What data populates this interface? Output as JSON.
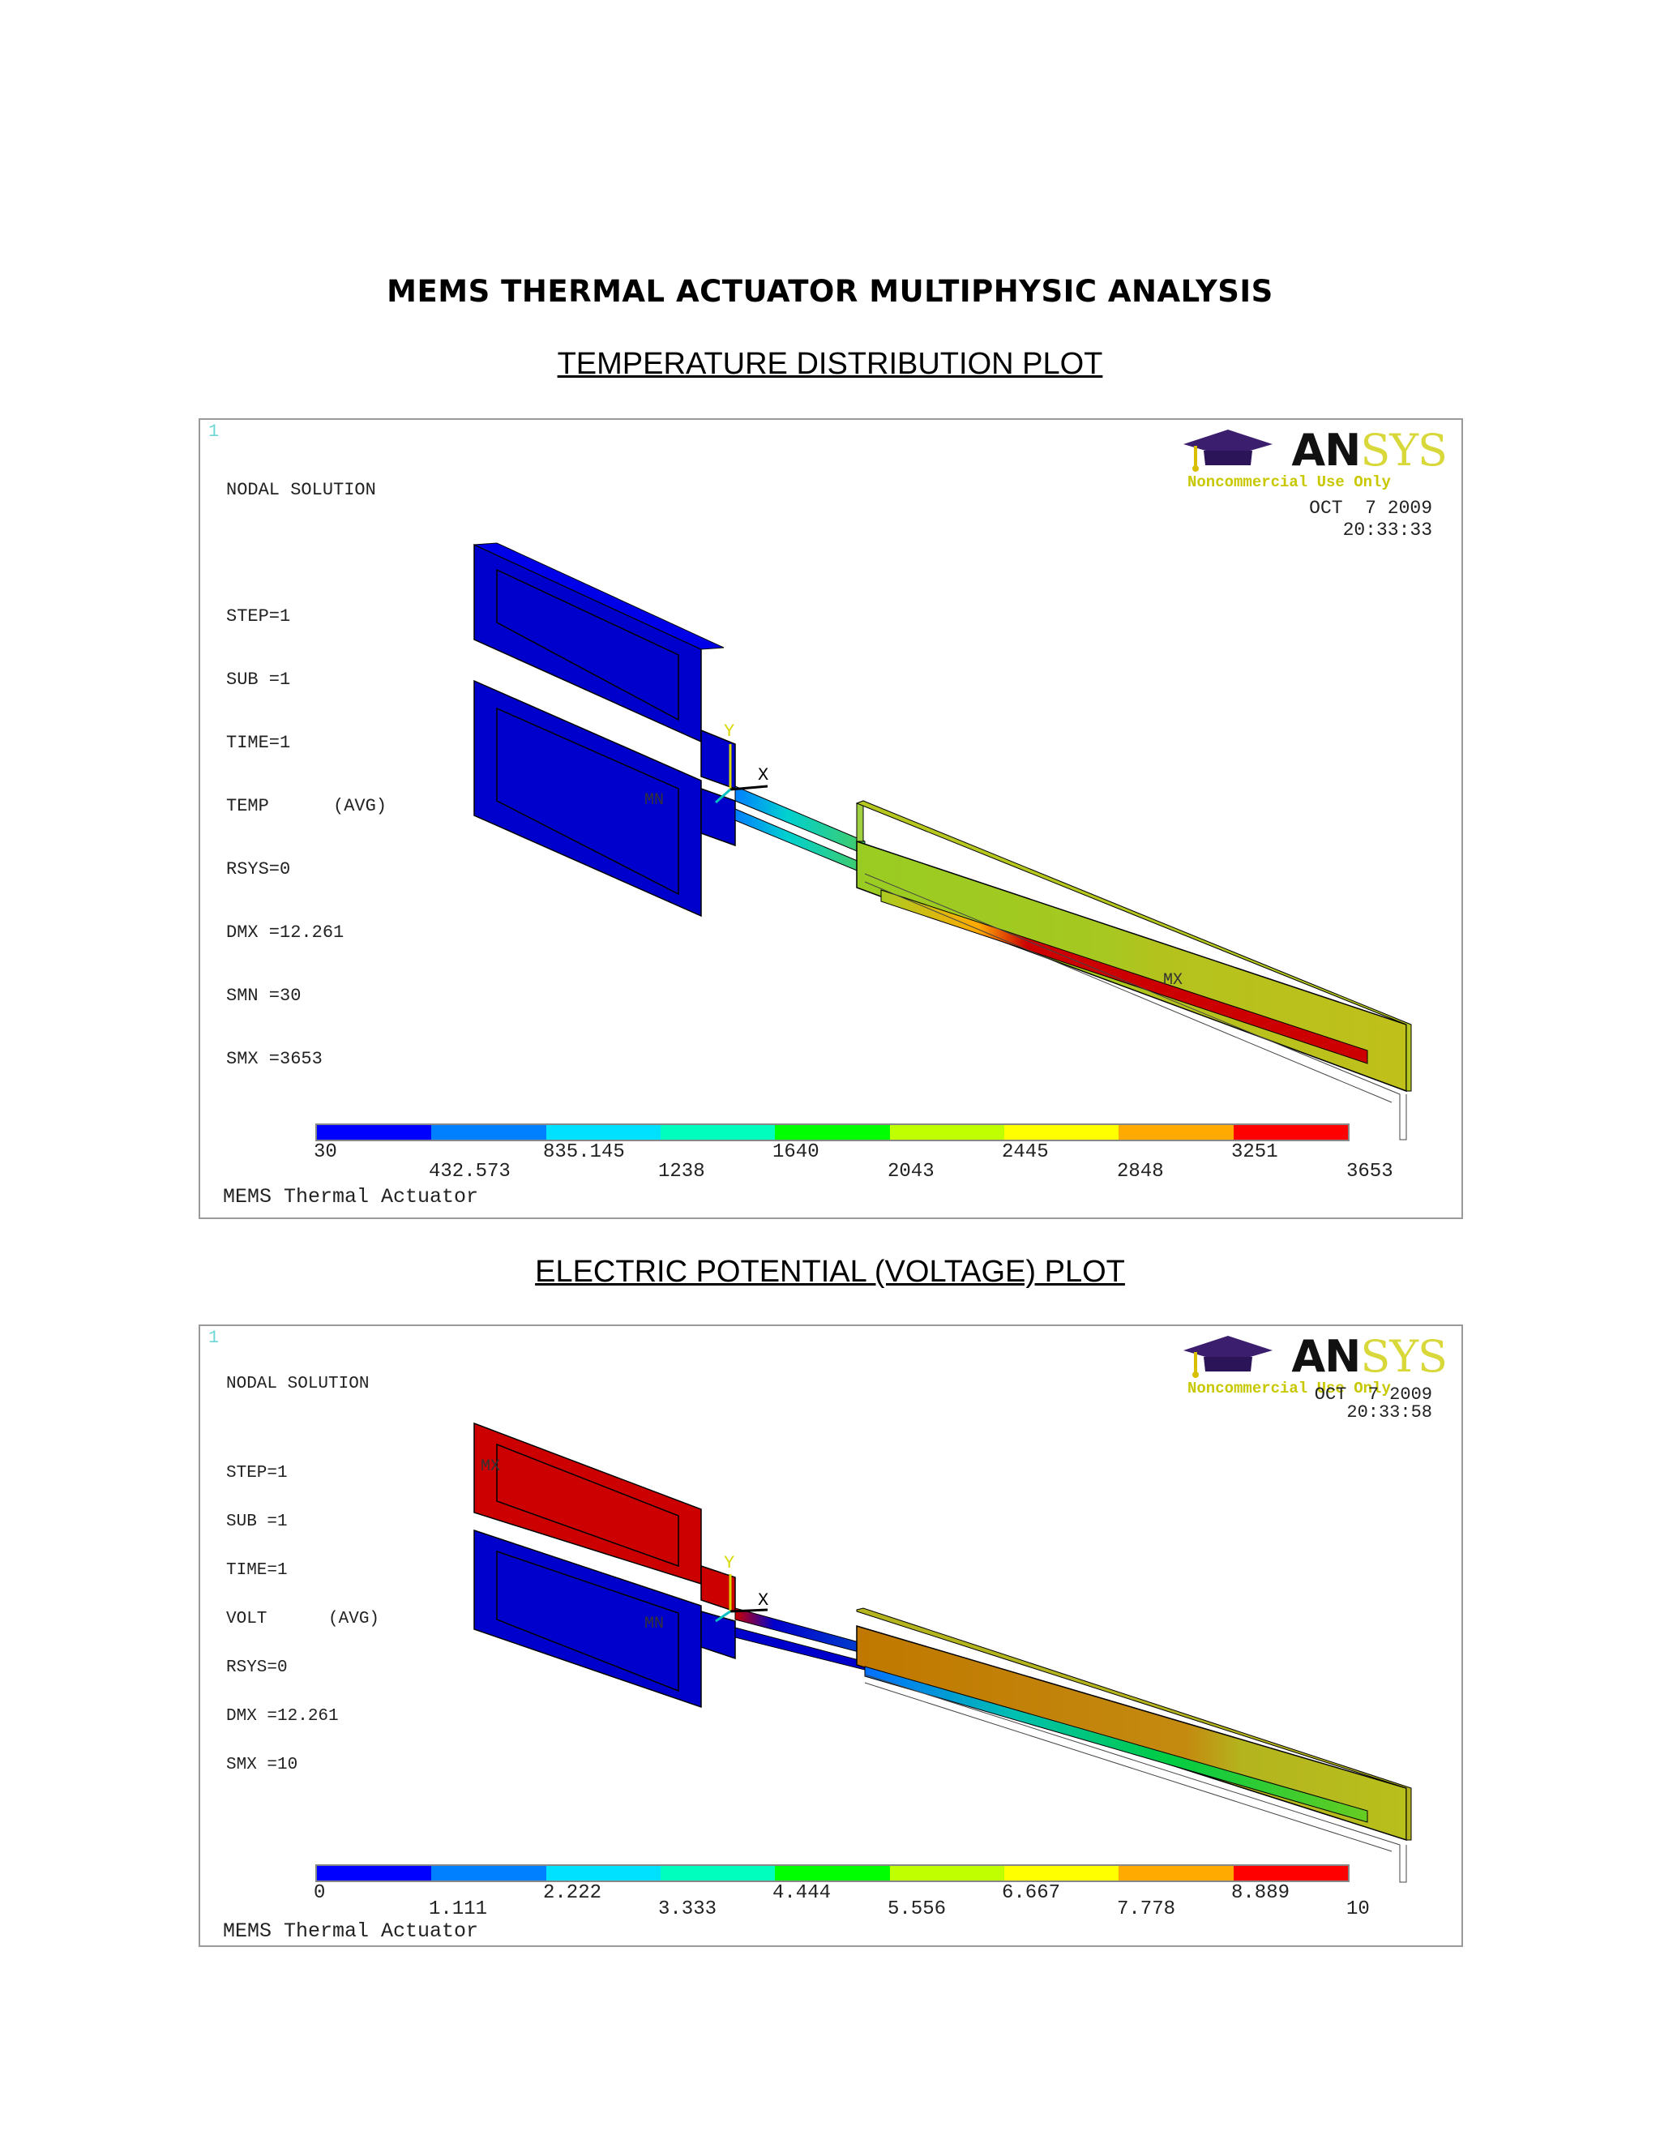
{
  "document": {
    "title": "MEMS THERMAL ACTUATOR MULTIPHYSIC ANALYSIS"
  },
  "logo": {
    "brand_main": "AN",
    "brand_accent": "SYS",
    "subtitle": "Noncommercial Use Only",
    "colors": {
      "cap": "#3c1e6e",
      "tassel": "#d8c000",
      "accent": "#d8d83a"
    }
  },
  "colorbar_colors": [
    "#0000ff",
    "#0080ff",
    "#00e0ff",
    "#00ffbf",
    "#00ff00",
    "#bfff00",
    "#ffff00",
    "#ffaa00",
    "#ff0000"
  ],
  "plots": [
    {
      "heading": "TEMPERATURE DISTRIBUTION PLOT",
      "window_number": "1",
      "info_lines": [
        "NODAL SOLUTION",
        "",
        "STEP=1",
        "SUB =1",
        "TIME=1",
        "TEMP      (AVG)",
        "RSYS=0",
        "DMX =12.261",
        "SMN =30",
        "SMX =3653"
      ],
      "date": "OCT  7 2009",
      "time": "20:33:33",
      "axis": {
        "y": "Y",
        "x": "X"
      },
      "markers": {
        "min": "MN",
        "max": "MX"
      },
      "legend_ticks_top": [
        "30",
        "835.145",
        "1640",
        "2445",
        "3251"
      ],
      "legend_ticks_bottom": [
        "432.573",
        "1238",
        "2043",
        "2848",
        "3653"
      ],
      "footer": "MEMS Thermal Actuator"
    },
    {
      "heading": "ELECTRIC POTENTIAL (VOLTAGE) PLOT",
      "window_number": "1",
      "info_lines": [
        "NODAL SOLUTION",
        "",
        "STEP=1",
        "SUB =1",
        "TIME=1",
        "VOLT      (AVG)",
        "RSYS=0",
        "DMX =12.261",
        "SMX =10"
      ],
      "date": "OCT  7 2009",
      "time": "20:33:58",
      "axis": {
        "y": "Y",
        "x": "X"
      },
      "markers": {
        "min": "MN",
        "max": "MX"
      },
      "legend_ticks_top": [
        "0",
        "2.222",
        "4.444",
        "6.667",
        "8.889"
      ],
      "legend_ticks_bottom": [
        "1.111",
        "3.333",
        "5.556",
        "7.778",
        "10"
      ],
      "footer": "MEMS Thermal Actuator"
    }
  ]
}
